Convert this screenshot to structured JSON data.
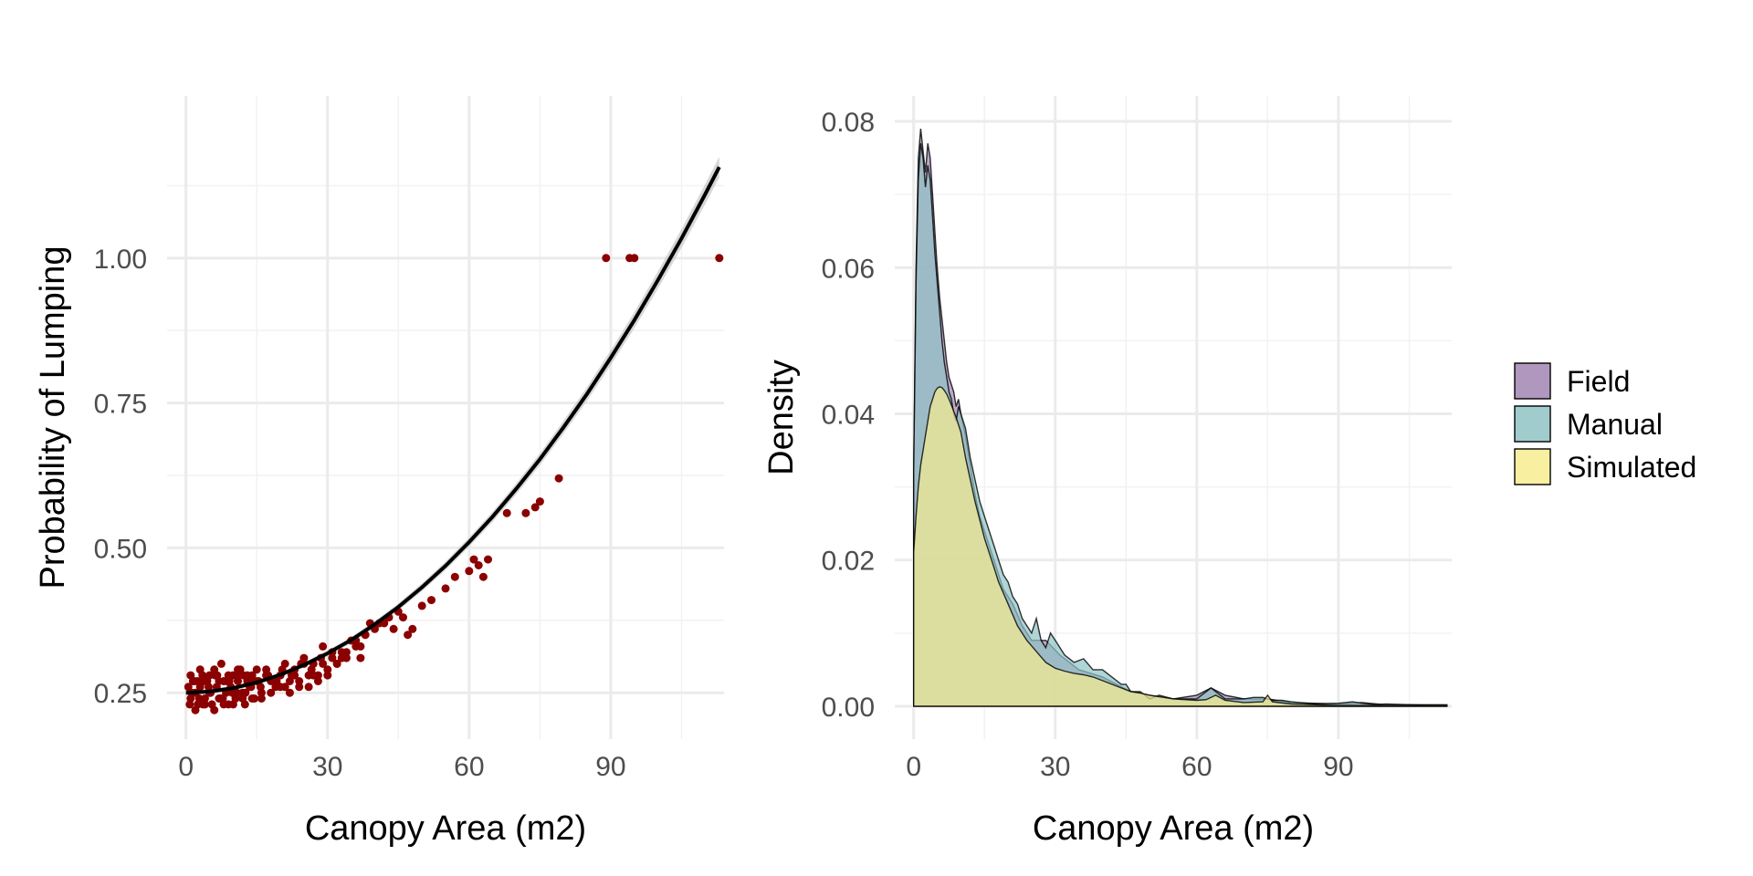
{
  "chart_data": [
    {
      "type": "scatter",
      "panel": "left",
      "xlabel": "Canopy Area (m2)",
      "ylabel": "Probability of Lumping",
      "xlim": [
        -4,
        114
      ],
      "ylim": [
        0.17,
        1.28
      ],
      "x_ticks": [
        "0",
        "30",
        "60",
        "90"
      ],
      "y_ticks": [
        "0.25",
        "0.50",
        "0.75",
        "1.00"
      ],
      "grid": true,
      "point_color": "#8b0000",
      "line_color": "#000000",
      "ribbon_color": "#bdbdbd",
      "fit_curve": {
        "x": [
          0,
          5,
          10,
          15,
          20,
          25,
          30,
          35,
          40,
          45,
          50,
          55,
          60,
          65,
          70,
          75,
          80,
          85,
          90,
          95,
          100,
          105,
          110,
          113
        ],
        "y": [
          0.25,
          0.252,
          0.258,
          0.268,
          0.281,
          0.298,
          0.318,
          0.341,
          0.368,
          0.398,
          0.432,
          0.469,
          0.51,
          0.554,
          0.602,
          0.653,
          0.708,
          0.766,
          0.828,
          0.893,
          0.962,
          1.034,
          1.11,
          1.157
        ]
      },
      "points": {
        "x": [
          0.5,
          1,
          1.5,
          2,
          2.5,
          3,
          3.5,
          4,
          4.5,
          5,
          5.5,
          6,
          6.5,
          7,
          7.5,
          8,
          8.5,
          9,
          9.5,
          10,
          10.5,
          11,
          11.5,
          12,
          12.5,
          13,
          13.5,
          14,
          14.5,
          15,
          16,
          17,
          18,
          19,
          20,
          21,
          22,
          23,
          24,
          25,
          26,
          27,
          28,
          29,
          30,
          31,
          32,
          33,
          34,
          35,
          36,
          37,
          38,
          39,
          40,
          42,
          43,
          45,
          46,
          48,
          50,
          52,
          55,
          57,
          60,
          61,
          62,
          63,
          64,
          68,
          72,
          74,
          75,
          79,
          89,
          94,
          95,
          113,
          1,
          2,
          3,
          4,
          5,
          6,
          7,
          8,
          9,
          10,
          11,
          12,
          13,
          14,
          15,
          16,
          18,
          20,
          22,
          24,
          26,
          28,
          30,
          32,
          1.2,
          2.4,
          3.6,
          4.8,
          6.2,
          7.4,
          8.6,
          9.8,
          11.2,
          12.6,
          14.2,
          15.8,
          17.4,
          19.2,
          21,
          23,
          25,
          27,
          29,
          31,
          33,
          36,
          38,
          0.8,
          1.8,
          2.8,
          3.8,
          5.2,
          6.6,
          7.8,
          9.2,
          10.8,
          12.2,
          13.8,
          15.4,
          17,
          18.6,
          20.4,
          22.4,
          24.4,
          26.6,
          28.6,
          34,
          37,
          41,
          44,
          47
        ],
        "y": [
          0.26,
          0.24,
          0.27,
          0.25,
          0.23,
          0.26,
          0.28,
          0.24,
          0.27,
          0.25,
          0.23,
          0.29,
          0.26,
          0.24,
          0.3,
          0.27,
          0.25,
          0.23,
          0.26,
          0.28,
          0.24,
          0.27,
          0.29,
          0.25,
          0.23,
          0.27,
          0.26,
          0.28,
          0.24,
          0.27,
          0.25,
          0.29,
          0.27,
          0.26,
          0.28,
          0.3,
          0.27,
          0.29,
          0.26,
          0.31,
          0.28,
          0.3,
          0.27,
          0.33,
          0.29,
          0.31,
          0.3,
          0.32,
          0.31,
          0.34,
          0.33,
          0.31,
          0.35,
          0.37,
          0.36,
          0.37,
          0.38,
          0.39,
          0.38,
          0.36,
          0.4,
          0.41,
          0.43,
          0.45,
          0.46,
          0.48,
          0.47,
          0.45,
          0.48,
          0.56,
          0.56,
          0.57,
          0.58,
          0.62,
          1.0,
          1.0,
          1.0,
          1.0,
          0.28,
          0.22,
          0.29,
          0.23,
          0.28,
          0.22,
          0.27,
          0.23,
          0.28,
          0.23,
          0.29,
          0.24,
          0.28,
          0.24,
          0.29,
          0.24,
          0.25,
          0.26,
          0.25,
          0.27,
          0.26,
          0.28,
          0.28,
          0.3,
          0.25,
          0.27,
          0.23,
          0.26,
          0.28,
          0.24,
          0.27,
          0.25,
          0.28,
          0.25,
          0.27,
          0.26,
          0.28,
          0.27,
          0.26,
          0.28,
          0.3,
          0.28,
          0.3,
          0.32,
          0.31,
          0.34,
          0.35,
          0.23,
          0.27,
          0.24,
          0.27,
          0.25,
          0.28,
          0.24,
          0.27,
          0.25,
          0.28,
          0.26,
          0.27,
          0.28,
          0.27,
          0.29,
          0.28,
          0.3,
          0.29,
          0.31,
          0.32,
          0.33,
          0.37,
          0.36,
          0.35
        ]
      }
    },
    {
      "type": "area",
      "panel": "right",
      "xlabel": "Canopy Area (m2)",
      "ylabel": "Density",
      "xlim": [
        -4,
        114
      ],
      "ylim": [
        -0.0045,
        0.0835
      ],
      "x_ticks": [
        "0",
        "30",
        "60",
        "90"
      ],
      "y_ticks": [
        "0.00",
        "0.02",
        "0.04",
        "0.06",
        "0.08"
      ],
      "grid": true,
      "legend_position": "right",
      "series": [
        {
          "name": "Field",
          "color": "#a285b2",
          "x": [
            0,
            0.5,
            1,
            1.5,
            2,
            2.5,
            3,
            3.5,
            4,
            4.5,
            5,
            5.5,
            6,
            6.5,
            7,
            7.5,
            8,
            8.5,
            9,
            9.5,
            10,
            11,
            12,
            13,
            14,
            15,
            17,
            19,
            21,
            23,
            25,
            28,
            31,
            35,
            40,
            46,
            50,
            55,
            60,
            63,
            66,
            70,
            75,
            80,
            90,
            95,
            100,
            113
          ],
          "y": [
            0.032,
            0.06,
            0.075,
            0.079,
            0.076,
            0.073,
            0.077,
            0.075,
            0.07,
            0.065,
            0.06,
            0.056,
            0.053,
            0.05,
            0.047,
            0.045,
            0.044,
            0.043,
            0.041,
            0.042,
            0.04,
            0.037,
            0.033,
            0.029,
            0.026,
            0.024,
            0.02,
            0.016,
            0.014,
            0.011,
            0.009,
            0.009,
            0.007,
            0.005,
            0.004,
            0.002,
            0.0015,
            0.001,
            0.0015,
            0.0025,
            0.0015,
            0.001,
            0.001,
            0.0005,
            0.0003,
            0.0005,
            0.0002,
            0.0002
          ]
        },
        {
          "name": "Manual",
          "color": "#8fc3c4",
          "x": [
            0,
            0.5,
            1,
            1.5,
            2,
            2.5,
            3,
            3.5,
            4,
            4.5,
            5,
            5.5,
            6,
            6.5,
            7,
            7.5,
            8,
            8.5,
            9,
            9.5,
            10,
            11,
            12,
            13,
            14,
            15,
            16,
            17,
            18,
            19,
            20,
            21,
            22,
            23,
            24,
            25,
            26,
            27,
            28,
            29,
            30,
            32,
            34,
            36,
            38,
            40,
            42,
            44,
            45,
            46,
            48,
            50,
            52,
            55,
            58,
            60,
            62,
            63,
            64,
            66,
            68,
            70,
            72,
            74,
            76,
            78,
            80,
            85,
            90,
            93,
            95,
            98,
            100,
            105,
            110,
            113
          ],
          "y": [
            0.032,
            0.058,
            0.072,
            0.077,
            0.075,
            0.071,
            0.074,
            0.072,
            0.067,
            0.062,
            0.058,
            0.054,
            0.05,
            0.047,
            0.045,
            0.043,
            0.042,
            0.04,
            0.039,
            0.041,
            0.04,
            0.038,
            0.034,
            0.031,
            0.028,
            0.026,
            0.024,
            0.022,
            0.02,
            0.018,
            0.017,
            0.015,
            0.014,
            0.012,
            0.011,
            0.01,
            0.012,
            0.009,
            0.008,
            0.01,
            0.009,
            0.007,
            0.006,
            0.0065,
            0.005,
            0.005,
            0.004,
            0.003,
            0.003,
            0.002,
            0.002,
            0.001,
            0.0015,
            0.001,
            0.001,
            0.001,
            0.002,
            0.0025,
            0.002,
            0.001,
            0.001,
            0.001,
            0.0012,
            0.0012,
            0.0008,
            0.0008,
            0.0006,
            0.0003,
            0.0004,
            0.0006,
            0.0004,
            0.0002,
            0.0003,
            0.0002,
            0.0001,
            0.0001
          ]
        },
        {
          "name": "Simulated",
          "color": "#f7ec8f",
          "x": [
            0,
            0.5,
            1,
            1.5,
            2,
            2.5,
            3,
            3.5,
            4,
            4.5,
            5,
            5.5,
            6,
            6.5,
            7,
            7.5,
            8,
            9,
            10,
            11,
            12,
            13,
            14,
            15,
            16,
            17,
            18,
            20,
            22,
            24,
            26,
            28,
            30,
            32,
            34,
            36,
            38,
            40,
            42,
            44,
            46,
            48,
            50,
            55,
            60,
            62,
            64,
            66,
            70,
            74,
            75,
            76,
            80,
            85,
            90,
            100,
            113
          ],
          "y": [
            0.021,
            0.026,
            0.03,
            0.033,
            0.035,
            0.037,
            0.039,
            0.041,
            0.042,
            0.043,
            0.0435,
            0.0437,
            0.0436,
            0.0432,
            0.0427,
            0.042,
            0.0412,
            0.0395,
            0.0375,
            0.034,
            0.031,
            0.028,
            0.0255,
            0.023,
            0.021,
            0.019,
            0.017,
            0.014,
            0.011,
            0.009,
            0.0075,
            0.006,
            0.0052,
            0.0048,
            0.0045,
            0.0043,
            0.004,
            0.0035,
            0.003,
            0.0025,
            0.002,
            0.0018,
            0.0015,
            0.001,
            0.0008,
            0.0009,
            0.0015,
            0.0008,
            0.0005,
            0.0006,
            0.0015,
            0.0006,
            0.0003,
            0.0002,
            0.0001,
            0.0001,
            0.0001
          ]
        }
      ]
    }
  ]
}
